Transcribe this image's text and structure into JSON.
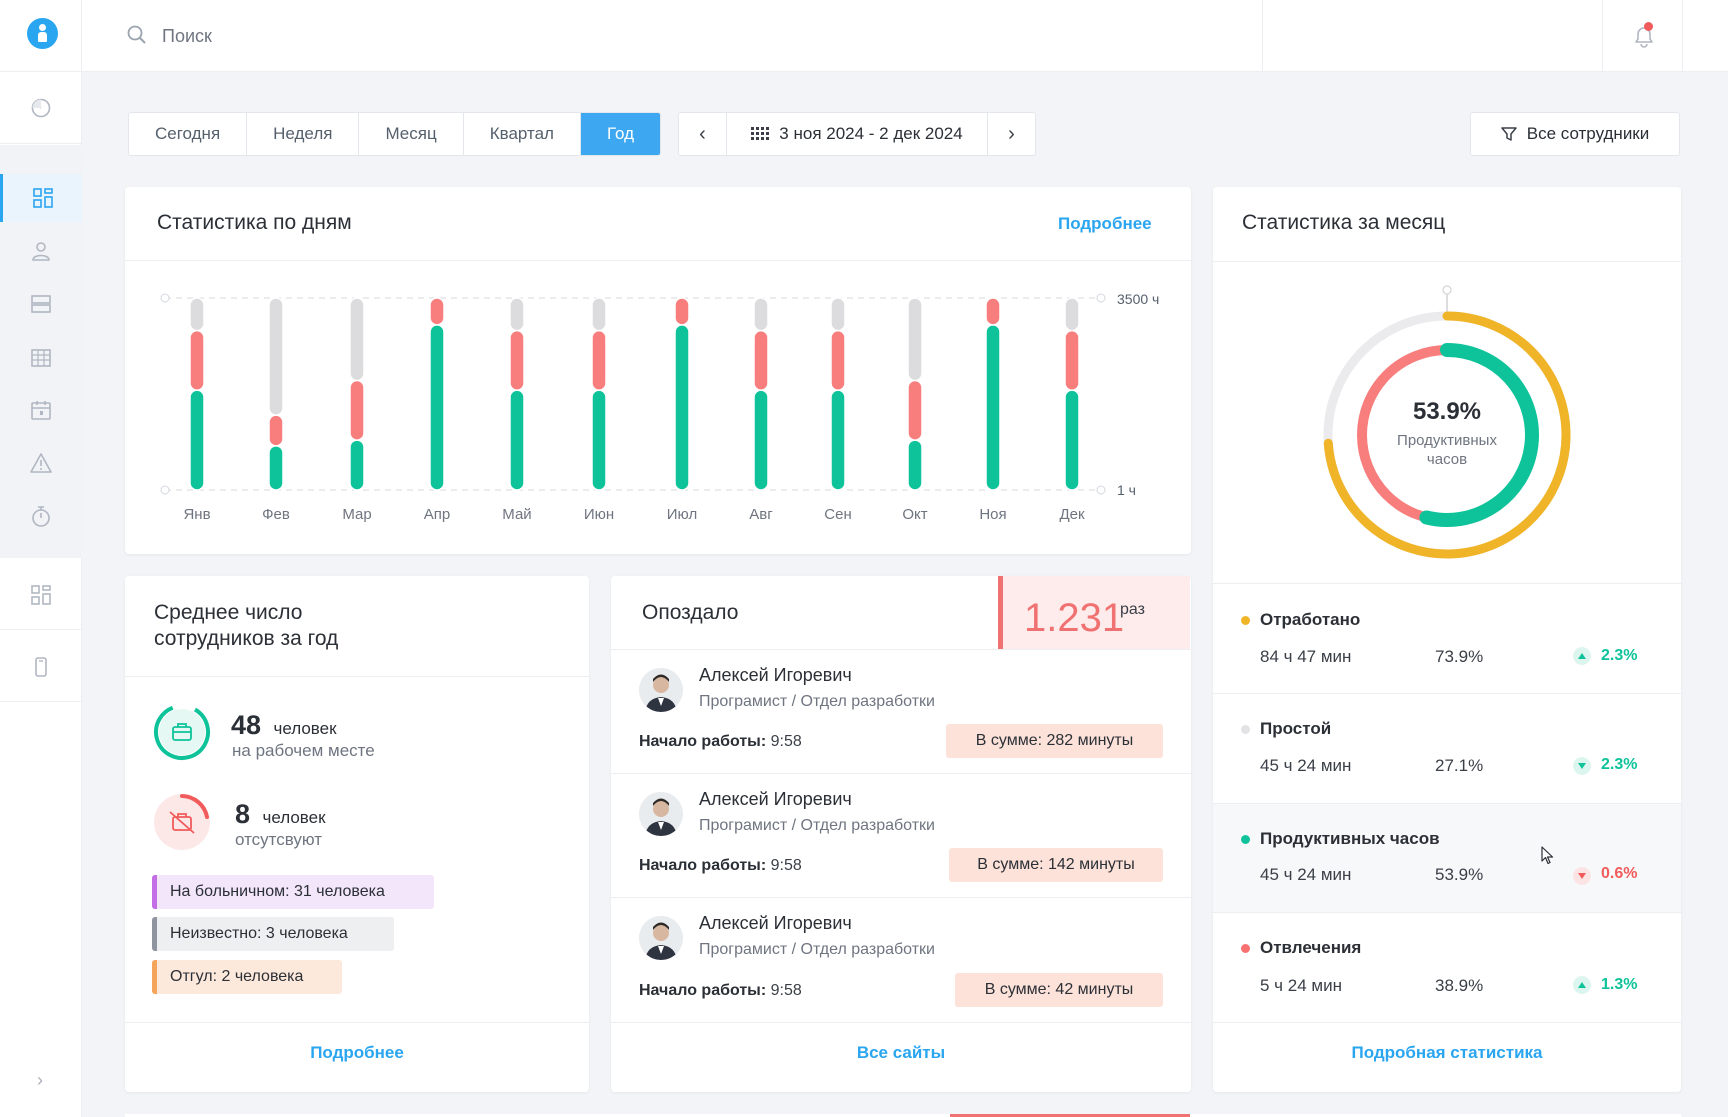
{
  "topbar": {
    "search_placeholder": "Поиск"
  },
  "filters": {
    "periods": [
      "Сегодня",
      "Неделя",
      "Месяц",
      "Квартал",
      "Год"
    ],
    "active_period": "Год",
    "date_range": "3 ноя 2024 - 2 дек 2024",
    "employee_filter": "Все сотрудники"
  },
  "daily": {
    "title": "Статистика по дням",
    "link": "Подробнее",
    "axis_top": "3500 ч",
    "axis_bottom": "1 ч"
  },
  "chart_data": {
    "type": "bar",
    "stacked": true,
    "categories": [
      "Янв",
      "Фев",
      "Мар",
      "Апр",
      "Май",
      "Июн",
      "Июл",
      "Авг",
      "Сен",
      "Окт",
      "Ноя",
      "Дек"
    ],
    "series": [
      {
        "color": "#0ec39a",
        "values": [
          0.52,
          0.23,
          0.26,
          0.86,
          0.52,
          0.52,
          0.86,
          0.52,
          0.52,
          0.26,
          0.86,
          0.52
        ]
      },
      {
        "color": "#f87d7d",
        "values": [
          0.31,
          0.16,
          0.31,
          0.14,
          0.31,
          0.31,
          0.14,
          0.31,
          0.31,
          0.31,
          0.14,
          0.31
        ]
      },
      {
        "color": "#dcdcde",
        "values": [
          0.17,
          0.61,
          0.43,
          0.0,
          0.17,
          0.17,
          0.0,
          0.17,
          0.17,
          0.43,
          0.0,
          0.17
        ]
      }
    ],
    "ylim": [
      "1 ч",
      "3500 ч"
    ]
  },
  "monthly": {
    "title": "Статистика за месяц",
    "donut_value": "53.9%",
    "donut_label_line1": "Продуктивных",
    "donut_label_line2": "часов",
    "link": "Подробная статистика",
    "stats": [
      {
        "name": "Отработано",
        "color": "#f0b429",
        "time": "84 ч 47 мин",
        "percent": "73.9%",
        "change": "2.3%",
        "trend": "up"
      },
      {
        "name": "Простой",
        "color": "#dcdcde",
        "time": "45 ч 24 мин",
        "percent": "27.1%",
        "change": "2.3%",
        "trend": "down-good"
      },
      {
        "name": "Продуктивных часов",
        "color": "#0ec39a",
        "time": "45 ч 24 мин",
        "percent": "53.9%",
        "change": "0.6%",
        "trend": "down"
      },
      {
        "name": "Отвлечения",
        "color": "#f87171",
        "time": "5 ч 24 мин",
        "percent": "38.9%",
        "change": "1.3%",
        "trend": "up"
      }
    ]
  },
  "avg": {
    "title_line1": "Среднее число",
    "title_line2": "сотрудников за год",
    "present_count": "48",
    "present_unit": "человек",
    "present_sub": "на рабочем месте",
    "absent_count": "8",
    "absent_unit": "человек",
    "absent_sub": "отсутсвуют",
    "tags": [
      "На больничном: 31 человека",
      "Неизвестно: 3 человека",
      "Отгул: 2 человека"
    ],
    "link": "Подробнее"
  },
  "late": {
    "title": "Опоздало",
    "count": "1.231",
    "count_unit": "раз",
    "start_label": "Начало работы:",
    "link": "Все сайты",
    "people": [
      {
        "name": "Алексей Игоревич",
        "role": "Програмист / Отдел разработки",
        "start": "9:58",
        "sum": "В сумме: 282 минуты"
      },
      {
        "name": "Алексей Игоревич",
        "role": "Програмист / Отдел разработки",
        "start": "9:58",
        "sum": "В сумме: 142 минуты"
      },
      {
        "name": "Алексей Игоревич",
        "role": "Програмист / Отдел разработки",
        "start": "9:58",
        "sum": "В сумме: 42 минуты"
      }
    ]
  }
}
